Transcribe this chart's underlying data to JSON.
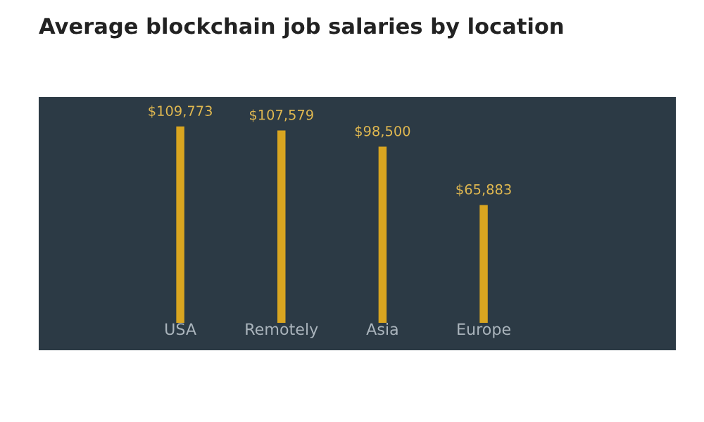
{
  "chart_data": {
    "type": "bar",
    "title": "Average blockchain job salaries by location",
    "categories": [
      "USA",
      "Remotely",
      "Asia",
      "Europe"
    ],
    "values": [
      109773,
      107579,
      98500,
      65883
    ],
    "value_labels": [
      "$109,773",
      "$107,579",
      "$98,500",
      "$65,883"
    ],
    "color": "#d9a520"
  }
}
